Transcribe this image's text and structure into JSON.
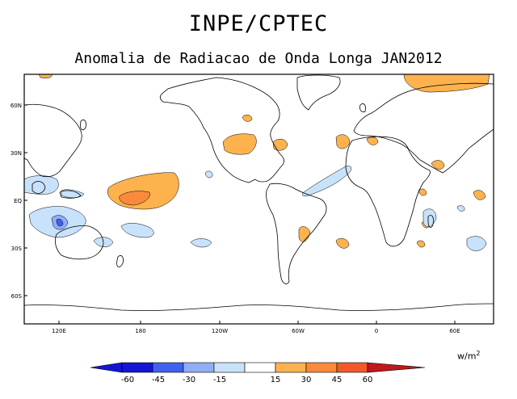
{
  "header": {
    "title": "INPE/CPTEC",
    "subtitle": "Anomalia de Radiacao de Onda Longa JAN2012"
  },
  "map": {
    "lat_labels": [
      "60N",
      "30N",
      "EQ",
      "30S",
      "60S"
    ],
    "lon_labels": [
      "120E",
      "180",
      "120W",
      "60W",
      "0",
      "60E"
    ],
    "units_base": "w/m",
    "units_exp": "2"
  },
  "legend": {
    "levels": [
      "-60",
      "-45",
      "-30",
      "-15",
      "15",
      "30",
      "45",
      "60"
    ],
    "colors": [
      "#1515d6",
      "#4060ee",
      "#90aef7",
      "#c8e2fb",
      "#ffffff",
      "#fdb24e",
      "#f98a3b",
      "#f05a28",
      "#c0181d"
    ]
  },
  "anomaly_colors": {
    "pos1": "#fdb24e",
    "pos2": "#f98a3b",
    "pos3": "#f05a28",
    "neg1": "#c8e2fb",
    "neg2": "#90aef7",
    "neg3": "#4060ee"
  }
}
